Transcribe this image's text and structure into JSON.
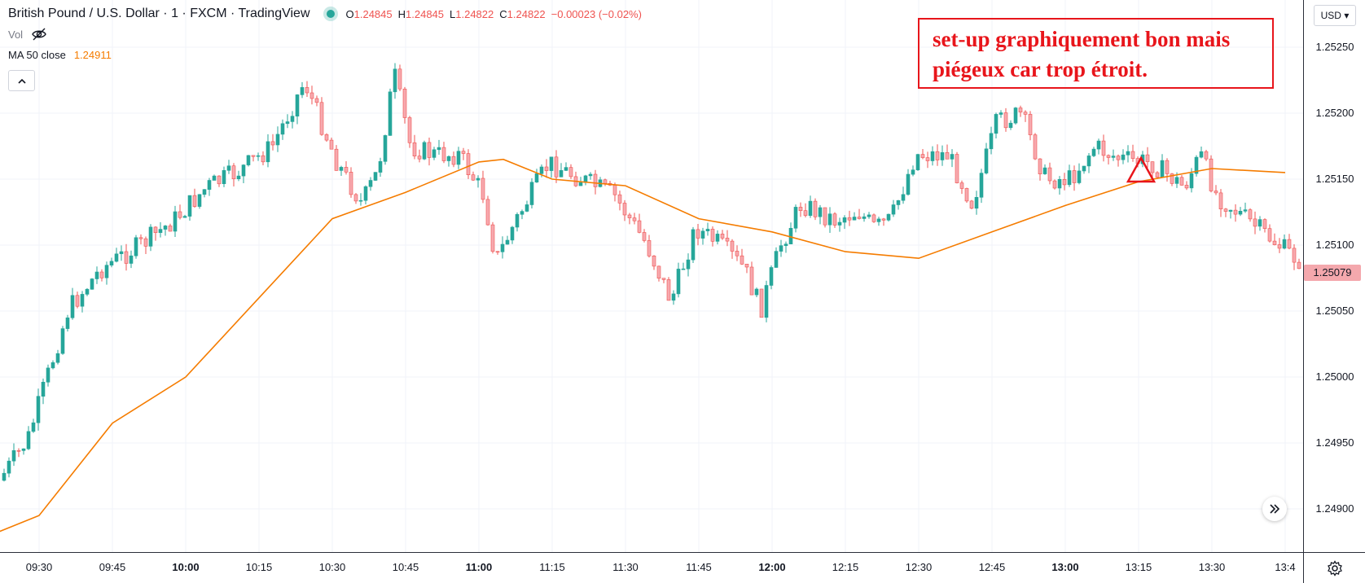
{
  "header": {
    "symbol_title": "British Pound / U.S. Dollar · 1 · FXCM · TradingView",
    "ohlc": [
      {
        "key": "O",
        "value": "1.24845"
      },
      {
        "key": "H",
        "value": "1.24845"
      },
      {
        "key": "L",
        "value": "1.24822"
      },
      {
        "key": "C",
        "value": "1.24822"
      }
    ],
    "change": "−0.00023 (−0.02%)",
    "volume_label": "Vol",
    "ma_label": "MA 50 close",
    "ma_value": "1.24911"
  },
  "annotation": {
    "line1": "set-up graphiquement bon mais",
    "line2": "piégeux car trop étroit."
  },
  "price_axis": {
    "currency": "USD",
    "ticks": [
      "1.25250",
      "1.25200",
      "1.25150",
      "1.25100",
      "1.25050",
      "1.25000",
      "1.24950",
      "1.24900"
    ],
    "last_price_tag": "1.25079"
  },
  "time_axis": {
    "ticks": [
      "09:30",
      "09:45",
      "10:00",
      "10:15",
      "10:30",
      "10:45",
      "11:00",
      "11:15",
      "11:30",
      "11:45",
      "12:00",
      "12:15",
      "12:30",
      "12:45",
      "13:00",
      "13:15",
      "13:30",
      "13:4"
    ],
    "bold_ticks": [
      "10:00",
      "11:00",
      "12:00",
      "13:00"
    ]
  },
  "colors": {
    "up": "#26a69a",
    "down": "#ef5350",
    "ma_line": "#f57c00",
    "annotation": "#e8151b",
    "grid": "#f0f3fa"
  },
  "chart_data": {
    "type": "line",
    "title": "",
    "series": [
      {
        "name": "MA 50 close",
        "x": [
          "09:20",
          "09:30",
          "09:45",
          "10:00",
          "10:15",
          "10:30",
          "10:45",
          "11:00",
          "11:05",
          "11:15",
          "11:30",
          "11:45",
          "12:00",
          "12:15",
          "12:30",
          "12:45",
          "13:00",
          "13:15",
          "13:30",
          "13:45"
        ],
        "values": [
          1.2488,
          1.24895,
          1.24965,
          1.25,
          1.2506,
          1.2512,
          1.2514,
          1.25163,
          1.25165,
          1.2515,
          1.25145,
          1.2512,
          1.2511,
          1.25095,
          1.2509,
          1.2511,
          1.2513,
          1.25148,
          1.25158,
          1.25155
        ]
      }
    ],
    "price_range": [
      1.2488,
      1.25275
    ],
    "marker": {
      "type": "triangle",
      "x": "13:15"
    }
  }
}
